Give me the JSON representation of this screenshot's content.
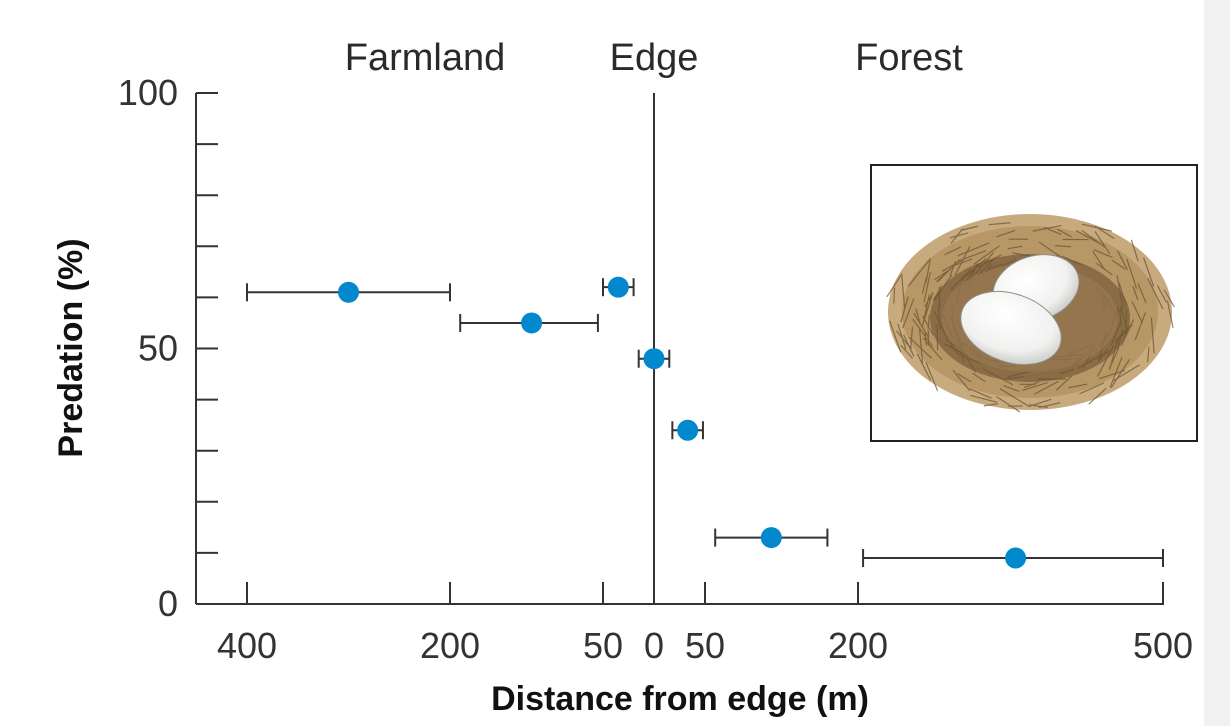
{
  "chart_data": {
    "type": "scatter",
    "title": "",
    "xlabel": "Distance from edge (m)",
    "ylabel": "Predation (%)",
    "ylim": [
      0,
      100
    ],
    "y_ticks": [
      0,
      50,
      100
    ],
    "x_ticks": [
      {
        "label": "400",
        "value": -400
      },
      {
        "label": "200",
        "value": -200
      },
      {
        "label": "50",
        "value": -50
      },
      {
        "label": "0",
        "value": 0
      },
      {
        "label": "50",
        "value": 50
      },
      {
        "label": "200",
        "value": 200
      },
      {
        "label": "500",
        "value": 500
      }
    ],
    "region_labels": [
      "Farmland",
      "Edge",
      "Forest"
    ],
    "points": [
      {
        "x": -300,
        "y": 61,
        "x_min": -400,
        "x_max": -200
      },
      {
        "x": -120,
        "y": 55,
        "x_min": -190,
        "x_max": -55
      },
      {
        "x": -35,
        "y": 62,
        "x_min": -50,
        "x_max": -20
      },
      {
        "x": 0,
        "y": 48,
        "x_min": -15,
        "x_max": 15
      },
      {
        "x": 33,
        "y": 34,
        "x_min": 18,
        "x_max": 48
      },
      {
        "x": 115,
        "y": 13,
        "x_min": 60,
        "x_max": 170
      },
      {
        "x": 355,
        "y": 9,
        "x_min": 205,
        "x_max": 500
      }
    ],
    "grid": false,
    "colors": {
      "point": "#0288cc",
      "errorbar": "#333333",
      "axis": "#333333"
    }
  },
  "inset": {
    "icon": "bird-nest-with-eggs-icon"
  }
}
